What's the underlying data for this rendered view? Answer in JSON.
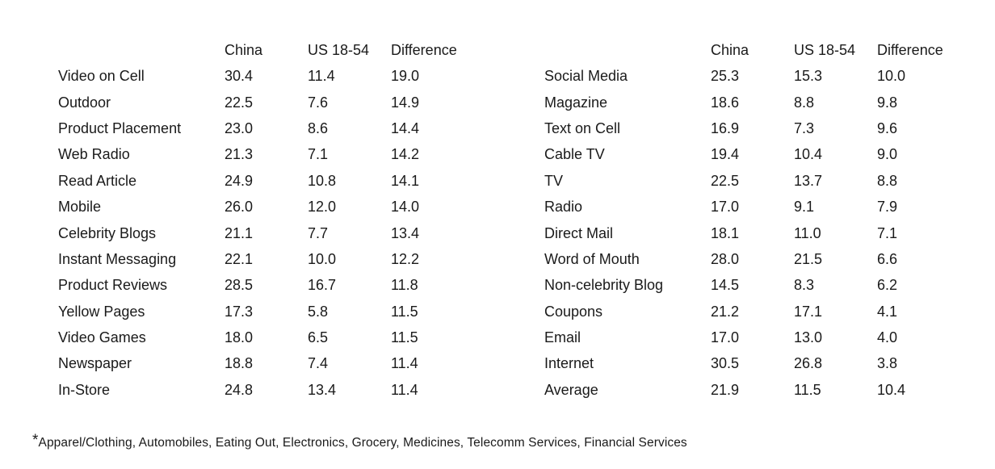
{
  "headers": {
    "china": "China",
    "us": "US 18-54",
    "difference": "Difference"
  },
  "left_rows": [
    {
      "label": "Video on Cell",
      "china": "30.4",
      "us": "11.4",
      "diff": "19.0"
    },
    {
      "label": "Outdoor",
      "china": "22.5",
      "us": "7.6",
      "diff": "14.9"
    },
    {
      "label": "Product Placement",
      "china": "23.0",
      "us": "8.6",
      "diff": "14.4"
    },
    {
      "label": "Web Radio",
      "china": "21.3",
      "us": "7.1",
      "diff": "14.2"
    },
    {
      "label": "Read Article",
      "china": "24.9",
      "us": "10.8",
      "diff": "14.1"
    },
    {
      "label": "Mobile",
      "china": "26.0",
      "us": "12.0",
      "diff": "14.0"
    },
    {
      "label": "Celebrity Blogs",
      "china": "21.1",
      "us": "7.7",
      "diff": "13.4"
    },
    {
      "label": "Instant Messaging",
      "china": "22.1",
      "us": "10.0",
      "diff": "12.2"
    },
    {
      "label": "Product Reviews",
      "china": "28.5",
      "us": "16.7",
      "diff": "11.8"
    },
    {
      "label": "Yellow Pages",
      "china": "17.3",
      "us": "5.8",
      "diff": "11.5"
    },
    {
      "label": "Video Games",
      "china": "18.0",
      "us": "6.5",
      "diff": "11.5"
    },
    {
      "label": "Newspaper",
      "china": "18.8",
      "us": "7.4",
      "diff": "11.4"
    },
    {
      "label": "In-Store",
      "china": "24.8",
      "us": "13.4",
      "diff": "11.4"
    }
  ],
  "right_rows": [
    {
      "label": "Social Media",
      "china": "25.3",
      "us": "15.3",
      "diff": "10.0"
    },
    {
      "label": "Magazine",
      "china": "18.6",
      "us": "8.8",
      "diff": "9.8"
    },
    {
      "label": "Text on Cell",
      "china": "16.9",
      "us": "7.3",
      "diff": "9.6"
    },
    {
      "label": "Cable TV",
      "china": "19.4",
      "us": "10.4",
      "diff": "9.0"
    },
    {
      "label": "TV",
      "china": "22.5",
      "us": "13.7",
      "diff": "8.8"
    },
    {
      "label": "Radio",
      "china": "17.0",
      "us": "9.1",
      "diff": "7.9"
    },
    {
      "label": "Direct Mail",
      "china": "18.1",
      "us": "11.0",
      "diff": "7.1"
    },
    {
      "label": "Word of Mouth",
      "china": "28.0",
      "us": "21.5",
      "diff": "6.6"
    },
    {
      "label": "Non-celebrity Blog",
      "china": "14.5",
      "us": "8.3",
      "diff": "6.2"
    },
    {
      "label": "Coupons",
      "china": "21.2",
      "us": "17.1",
      "diff": "4.1"
    },
    {
      "label": "Email",
      "china": "17.0",
      "us": "13.0",
      "diff": "4.0"
    },
    {
      "label": "Internet",
      "china": "30.5",
      "us": "26.8",
      "diff": "3.8"
    },
    {
      "label": "Average",
      "china": "21.9",
      "us": "11.5",
      "diff": "10.4"
    }
  ],
  "footnote": {
    "marker": "*",
    "text": "Apparel/Clothing,  Automobiles, Eating Out, Electronics, Grocery, Medicines, Telecomm  Services, Financial Services"
  }
}
